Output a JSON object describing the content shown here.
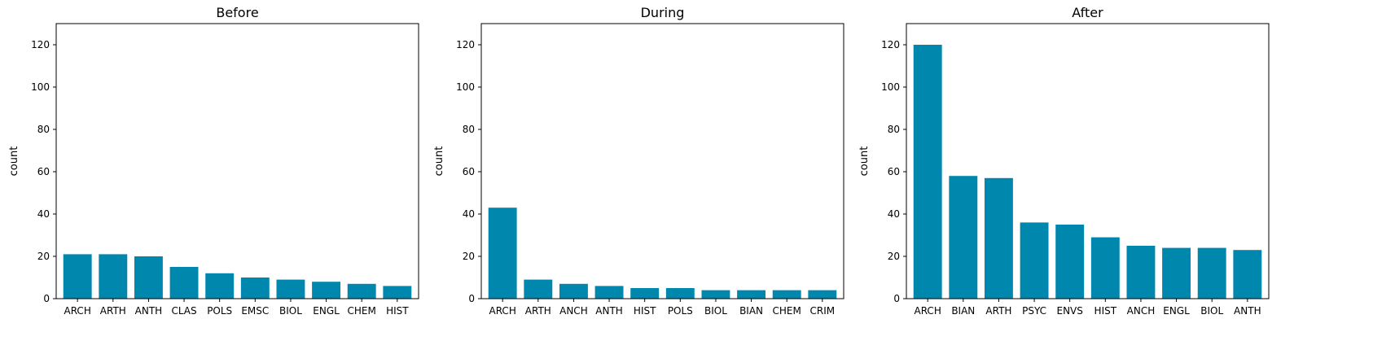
{
  "chart_data": [
    {
      "type": "bar",
      "title": "Before",
      "ylabel": "count",
      "ylim": [
        0,
        130
      ],
      "yticks": [
        0,
        20,
        40,
        60,
        80,
        100,
        120
      ],
      "grid": false,
      "bar_color": "#0087ae",
      "categories": [
        "ARCH",
        "ARTH",
        "ANTH",
        "CLAS",
        "POLS",
        "EMSC",
        "BIOL",
        "ENGL",
        "CHEM",
        "HIST"
      ],
      "values": [
        21,
        21,
        20,
        15,
        12,
        10,
        9,
        8,
        7,
        6
      ]
    },
    {
      "type": "bar",
      "title": "During",
      "ylabel": "count",
      "ylim": [
        0,
        130
      ],
      "yticks": [
        0,
        20,
        40,
        60,
        80,
        100,
        120
      ],
      "grid": false,
      "bar_color": "#0087ae",
      "categories": [
        "ARCH",
        "ARTH",
        "ANCH",
        "ANTH",
        "HIST",
        "POLS",
        "BIOL",
        "BIAN",
        "CHEM",
        "CRIM"
      ],
      "values": [
        43,
        9,
        7,
        6,
        5,
        5,
        4,
        4,
        4,
        4
      ]
    },
    {
      "type": "bar",
      "title": "After",
      "ylabel": "count",
      "ylim": [
        0,
        130
      ],
      "yticks": [
        0,
        20,
        40,
        60,
        80,
        100,
        120
      ],
      "grid": false,
      "bar_color": "#0087ae",
      "categories": [
        "ARCH",
        "BIAN",
        "ARTH",
        "PSYC",
        "ENVS",
        "HIST",
        "ANCH",
        "ENGL",
        "BIOL",
        "ANTH"
      ],
      "values": [
        120,
        58,
        57,
        36,
        35,
        29,
        25,
        24,
        24,
        23
      ]
    }
  ]
}
